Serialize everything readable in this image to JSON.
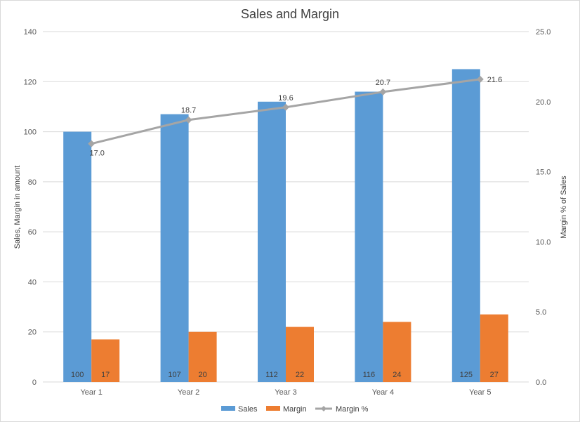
{
  "chart_data": {
    "type": "bar",
    "title": "Sales and Margin",
    "categories": [
      "Year 1",
      "Year 2",
      "Year 3",
      "Year 4",
      "Year 5"
    ],
    "series": [
      {
        "name": "Sales",
        "type": "bar",
        "axis": "left",
        "color": "#5b9bd5",
        "values": [
          100,
          107,
          112,
          116,
          125
        ],
        "labels": [
          "100",
          "107",
          "112",
          "116",
          "125"
        ]
      },
      {
        "name": "Margin",
        "type": "bar",
        "axis": "left",
        "color": "#ed7d31",
        "values": [
          17,
          20,
          22,
          24,
          27
        ],
        "labels": [
          "17",
          "20",
          "22",
          "24",
          "27"
        ]
      },
      {
        "name": "Margin %",
        "type": "line",
        "axis": "right",
        "color": "#a5a5a5",
        "values": [
          17.0,
          18.7,
          19.6,
          20.7,
          21.6
        ],
        "labels": [
          "17.0",
          "18.7",
          "19.6",
          "20.7",
          "21.6"
        ]
      }
    ],
    "ylabel": "Sales, Margin in amount",
    "ylim": [
      0,
      140
    ],
    "yticks": [
      "0",
      "20",
      "40",
      "60",
      "80",
      "100",
      "120",
      "140"
    ],
    "y2label": "Margin % of Sales",
    "y2lim": [
      0,
      25
    ],
    "y2ticks": [
      "0.0",
      "5.0",
      "10.0",
      "15.0",
      "20.0",
      "25.0"
    ],
    "grid": true,
    "legend_position": "bottom"
  }
}
